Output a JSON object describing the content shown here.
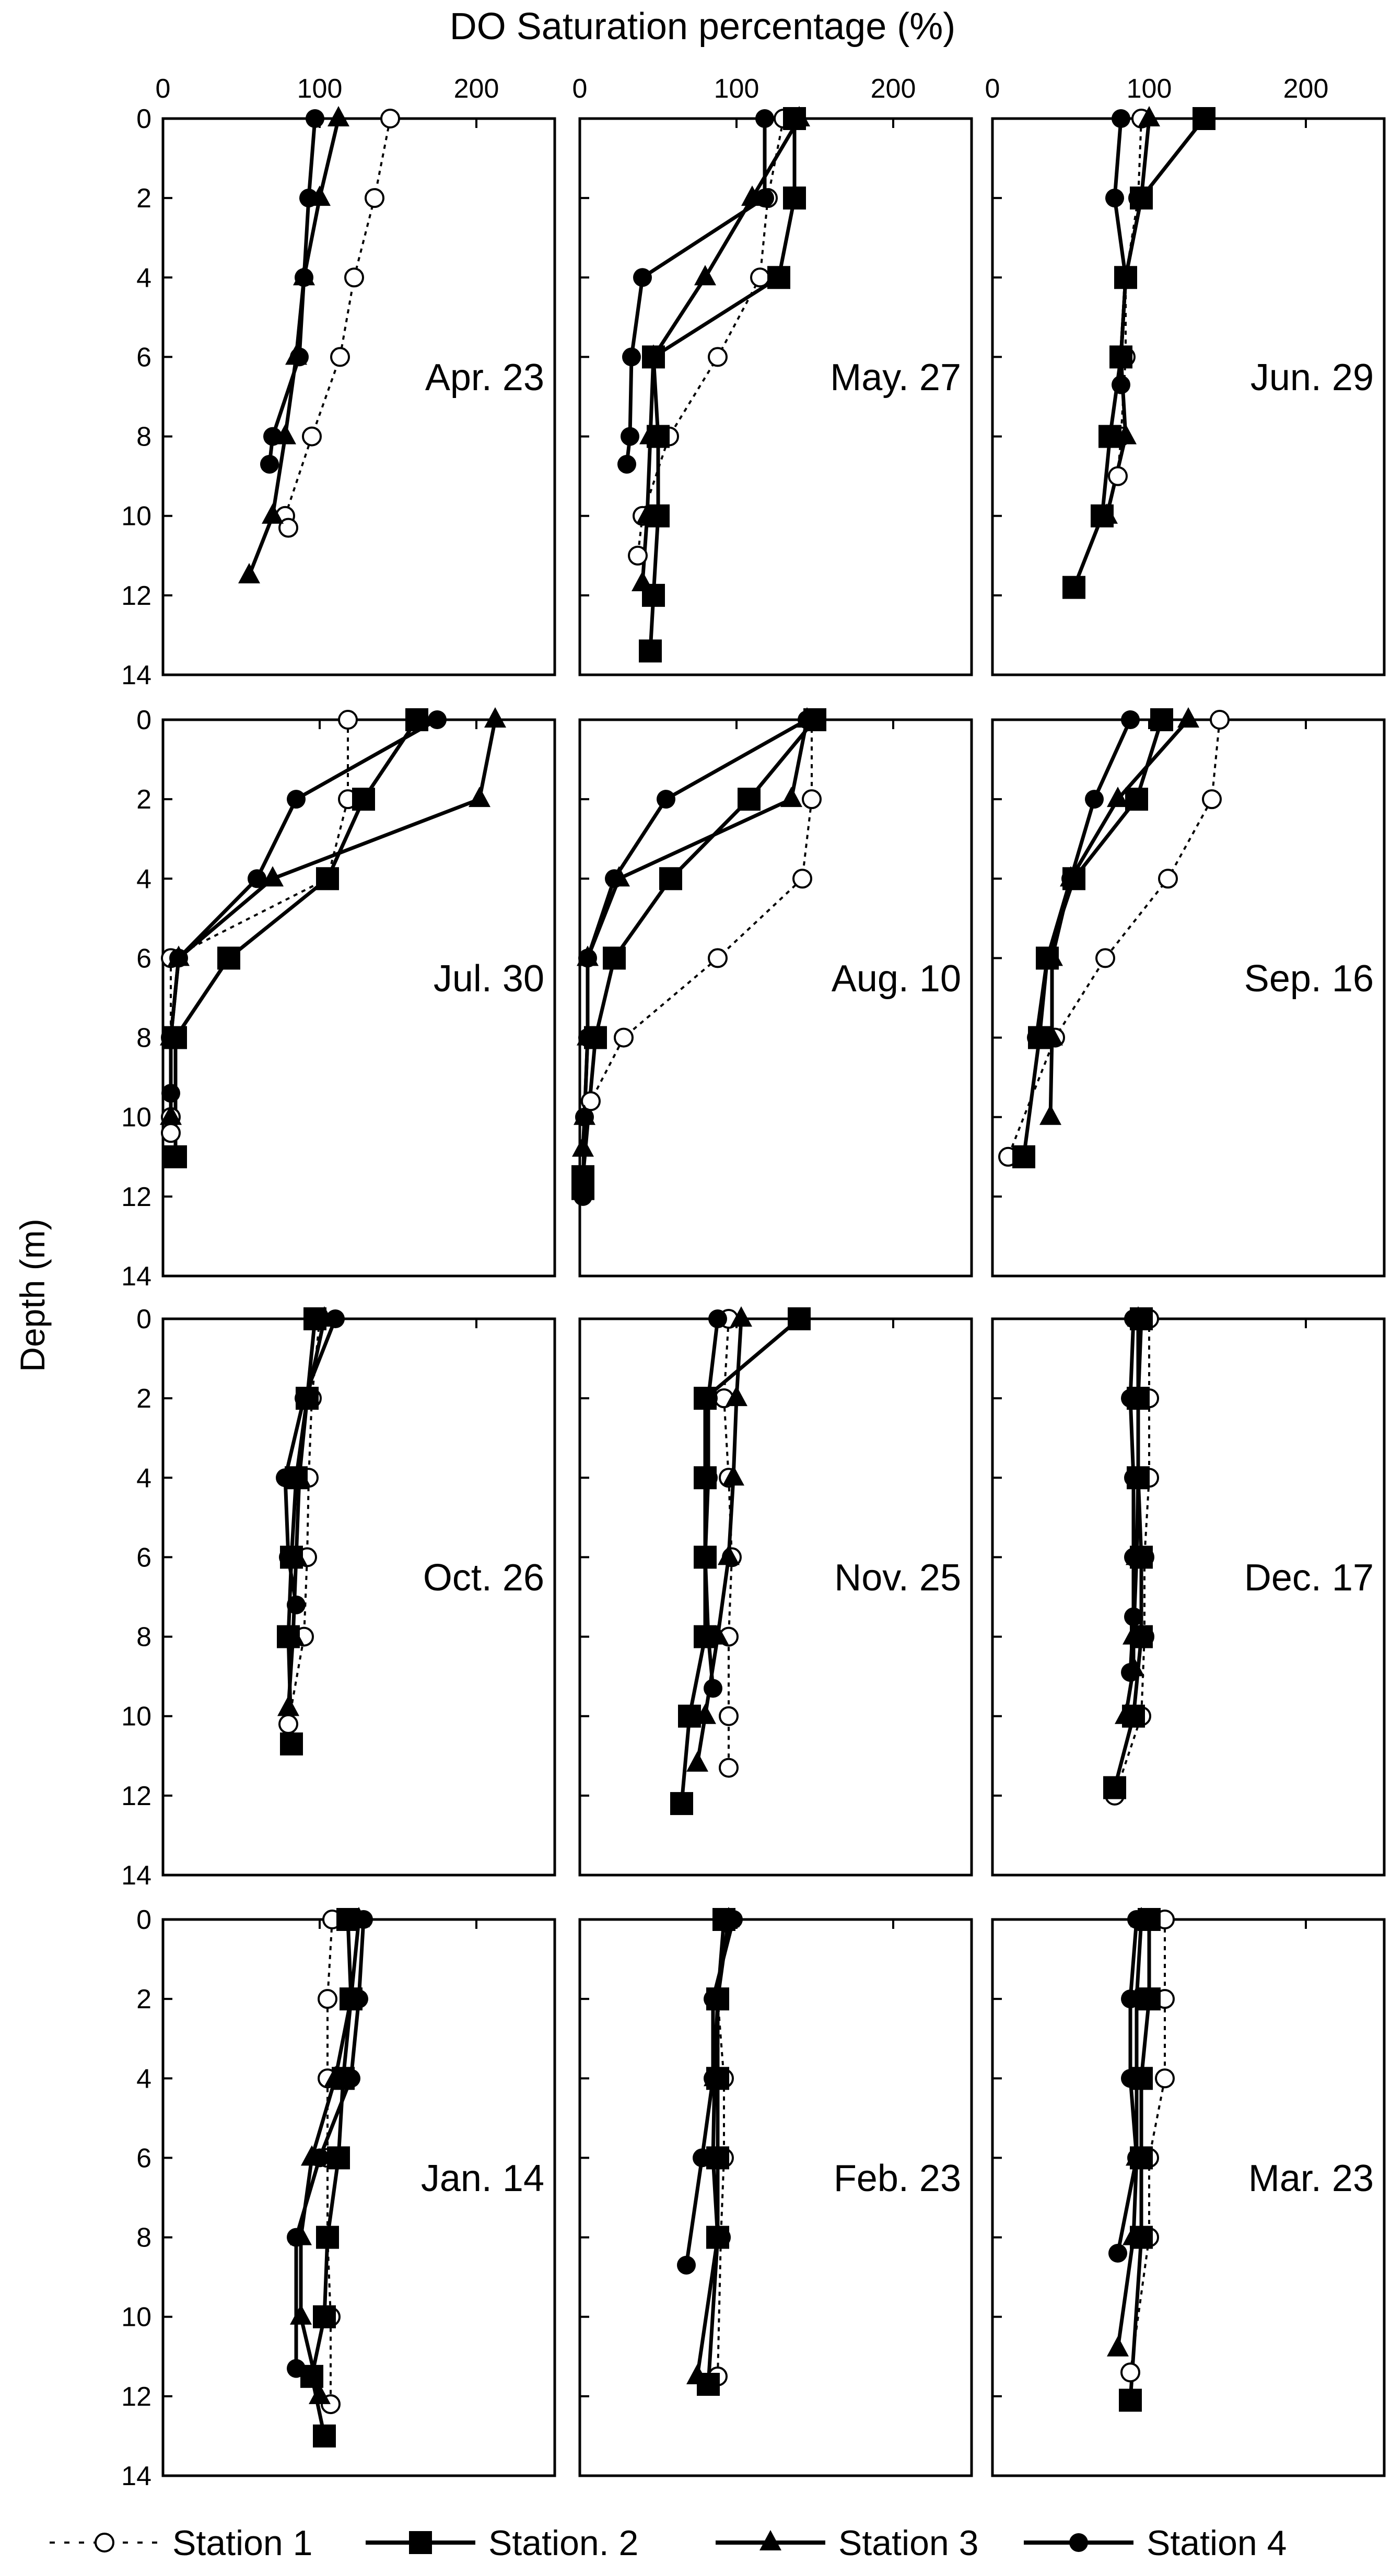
{
  "figure": {
    "xlabel": "DO Saturation percentage (%)",
    "ylabel": "Depth (m)"
  },
  "legend": {
    "items": [
      {
        "label": "Station 1",
        "marker": "open-circle",
        "line": "dotted"
      },
      {
        "label": "Station. 2",
        "marker": "square",
        "line": "solid"
      },
      {
        "label": "Station 3",
        "marker": "triangle",
        "line": "solid"
      },
      {
        "label": "Station 4",
        "marker": "circle",
        "line": "solid"
      }
    ]
  },
  "chart_data": {
    "type": "line",
    "orientation": "depth-profile",
    "x_ticks": [
      "0",
      "100",
      "200"
    ],
    "y_ticks": [
      "0",
      "2",
      "4",
      "6",
      "8",
      "10",
      "12",
      "14"
    ],
    "xlim": [
      0,
      250
    ],
    "ylim": [
      0,
      14
    ],
    "y_inverted": true,
    "series_names": [
      "Station 1",
      "Station. 2",
      "Station 3",
      "Station 4"
    ],
    "panels": [
      {
        "label": "Apr. 23",
        "series": [
          {
            "x": [
              145,
              135,
              122,
              113,
              95,
              78,
              80
            ],
            "y": [
              0,
              2,
              4,
              6,
              8,
              10,
              10.3
            ]
          },
          {
            "x": [],
            "y": []
          },
          {
            "x": [
              112,
              100,
              90,
              85,
              78,
              70,
              55
            ],
            "y": [
              0,
              2,
              4,
              6,
              8,
              10,
              11.5
            ]
          },
          {
            "x": [
              97,
              93,
              90,
              87,
              70,
              68
            ],
            "y": [
              0,
              2,
              4,
              6,
              8,
              8.7
            ]
          }
        ]
      },
      {
        "label": "May. 27",
        "series": [
          {
            "x": [
              130,
              120,
              115,
              88,
              57,
              40,
              37
            ],
            "y": [
              0,
              2,
              4,
              6,
              8,
              10,
              11
            ]
          },
          {
            "x": [
              137,
              137,
              127,
              47,
              50,
              50,
              47,
              45
            ],
            "y": [
              0,
              2,
              4,
              6,
              8,
              10,
              12,
              13.4
            ]
          },
          {
            "x": [
              140,
              110,
              80,
              47,
              45,
              43,
              40
            ],
            "y": [
              0,
              2,
              4,
              6,
              8,
              10,
              11.7
            ]
          },
          {
            "x": [
              118,
              118,
              40,
              33,
              32,
              30
            ],
            "y": [
              0,
              2,
              4,
              6,
              8,
              8.7
            ]
          }
        ]
      },
      {
        "label": "Jun. 29",
        "series": [
          {
            "x": [
              95,
              93,
              85,
              85,
              82,
              80
            ],
            "y": [
              0,
              2,
              4,
              6,
              8,
              9
            ]
          },
          {
            "x": [
              135,
              95,
              85,
              82,
              75,
              70,
              52
            ],
            "y": [
              0,
              2,
              4,
              6,
              8,
              10,
              11.8
            ]
          },
          {
            "x": [
              100,
              95,
              85,
              82,
              85,
              73
            ],
            "y": [
              0,
              2,
              4,
              6,
              8,
              10
            ]
          },
          {
            "x": [
              82,
              78,
              85,
              82,
              82
            ],
            "y": [
              0,
              2,
              4,
              6,
              6.7
            ]
          }
        ]
      },
      {
        "label": "Jul. 30",
        "series": [
          {
            "x": [
              118,
              118,
              105,
              5,
              5,
              5,
              5
            ],
            "y": [
              0,
              2,
              4,
              6,
              8,
              10,
              10.4
            ]
          },
          {
            "x": [
              162,
              128,
              105,
              42,
              8,
              8
            ],
            "y": [
              0,
              2,
              4,
              6,
              8,
              11
            ]
          },
          {
            "x": [
              212,
              202,
              70,
              10,
              5,
              5
            ],
            "y": [
              0,
              2,
              4,
              6,
              8,
              10
            ]
          },
          {
            "x": [
              175,
              85,
              60,
              10,
              5,
              5
            ],
            "y": [
              0,
              2,
              4,
              6,
              8,
              9.4
            ]
          }
        ]
      },
      {
        "label": "Aug. 10",
        "series": [
          {
            "x": [
              148,
              148,
              142,
              88,
              28,
              7
            ],
            "y": [
              0,
              2,
              4,
              6,
              8,
              9.6
            ]
          },
          {
            "x": [
              150,
              108,
              58,
              22,
              10,
              2,
              2
            ],
            "y": [
              0,
              2,
              4,
              6,
              8,
              11.5,
              11.8
            ]
          },
          {
            "x": [
              145,
              135,
              25,
              5,
              5,
              3,
              2
            ],
            "y": [
              0,
              2,
              4,
              6,
              8,
              10,
              10.8
            ]
          },
          {
            "x": [
              145,
              55,
              22,
              5,
              5,
              3,
              2
            ],
            "y": [
              0,
              2,
              4,
              6,
              8,
              10,
              12
            ]
          }
        ]
      },
      {
        "label": "Sep. 16",
        "series": [
          {
            "x": [
              145,
              140,
              112,
              72,
              40,
              10
            ],
            "y": [
              0,
              2,
              4,
              6,
              8,
              11
            ]
          },
          {
            "x": [
              108,
              92,
              52,
              35,
              30,
              20
            ],
            "y": [
              0,
              2,
              4,
              6,
              8,
              11
            ]
          },
          {
            "x": [
              125,
              80,
              50,
              38,
              38,
              37
            ],
            "y": [
              0,
              2,
              4,
              6,
              8,
              10
            ]
          },
          {
            "x": [
              88,
              65,
              50,
              35,
              28
            ],
            "y": [
              0,
              2,
              4,
              6,
              8
            ]
          }
        ]
      },
      {
        "label": "Oct. 26",
        "series": [
          {
            "x": [
              100,
              95,
              93,
              92,
              90,
              80
            ],
            "y": [
              0,
              2,
              4,
              6,
              8,
              10.2
            ]
          },
          {
            "x": [
              97,
              92,
              85,
              82,
              80,
              82
            ],
            "y": [
              0,
              2,
              4,
              6,
              8,
              10.7
            ]
          },
          {
            "x": [
              103,
              92,
              87,
              85,
              83,
              80
            ],
            "y": [
              0,
              2,
              4,
              6,
              8,
              9.8
            ]
          },
          {
            "x": [
              110,
              90,
              78,
              80,
              85
            ],
            "y": [
              0,
              2,
              4,
              6,
              7.2
            ]
          }
        ]
      },
      {
        "label": "Nov. 25",
        "series": [
          {
            "x": [
              95,
              92,
              95,
              97,
              95,
              95,
              95
            ],
            "y": [
              0,
              2,
              4,
              6,
              8,
              10,
              11.3
            ]
          },
          {
            "x": [
              140,
              80,
              80,
              80,
              80,
              70,
              65
            ],
            "y": [
              0,
              2,
              4,
              6,
              8,
              10,
              12.2
            ]
          },
          {
            "x": [
              103,
              100,
              98,
              95,
              88,
              80,
              75
            ],
            "y": [
              0,
              2,
              4,
              6,
              8,
              10,
              11.2
            ]
          },
          {
            "x": [
              88,
              82,
              82,
              80,
              82,
              85
            ],
            "y": [
              0,
              2,
              4,
              6,
              8,
              9.3
            ]
          }
        ]
      },
      {
        "label": "Dec. 17",
        "series": [
          {
            "x": [
              100,
              100,
              100,
              97,
              97,
              95,
              78
            ],
            "y": [
              0,
              2,
              4,
              6,
              8,
              10,
              12
            ]
          },
          {
            "x": [
              95,
              93,
              93,
              95,
              95,
              90,
              78
            ],
            "y": [
              0,
              2,
              4,
              6,
              8,
              10,
              11.8
            ]
          },
          {
            "x": [
              93,
              93,
              93,
              92,
              90,
              90,
              85
            ],
            "y": [
              0,
              2,
              4,
              6,
              8,
              8.8,
              10
            ]
          },
          {
            "x": [
              90,
              88,
              90,
              90,
              90,
              88
            ],
            "y": [
              0,
              2,
              4,
              6,
              7.5,
              8.9
            ]
          }
        ]
      },
      {
        "label": "Jan. 14",
        "series": [
          {
            "x": [
              108,
              105,
              105,
              105,
              105,
              107,
              107
            ],
            "y": [
              0,
              2,
              4,
              6,
              8,
              10,
              12.2
            ]
          },
          {
            "x": [
              118,
              120,
              115,
              112,
              105,
              103,
              95,
              103
            ],
            "y": [
              0,
              2,
              4,
              6,
              8,
              10,
              11.5,
              13
            ]
          },
          {
            "x": [
              125,
              120,
              110,
              95,
              88,
              88,
              100
            ],
            "y": [
              0,
              2,
              4,
              6,
              8,
              10,
              12
            ]
          },
          {
            "x": [
              128,
              125,
              120,
              100,
              85,
              85
            ],
            "y": [
              0,
              2,
              4,
              6,
              8,
              11.3
            ]
          }
        ]
      },
      {
        "label": "Feb. 23",
        "series": [
          {
            "x": [
              93,
              88,
              92,
              92,
              90,
              88
            ],
            "y": [
              0,
              2,
              4,
              6,
              8,
              11.5
            ]
          },
          {
            "x": [
              92,
              88,
              88,
              88,
              88,
              82
            ],
            "y": [
              0,
              2,
              4,
              6,
              8,
              11.7
            ]
          },
          {
            "x": [
              95,
              88,
              86,
              85,
              88,
              75
            ],
            "y": [
              0,
              2,
              4,
              6,
              8,
              11.5
            ]
          },
          {
            "x": [
              98,
              85,
              85,
              78,
              68
            ],
            "y": [
              0,
              2,
              4,
              6,
              8.7
            ]
          }
        ]
      },
      {
        "label": "Mar. 23",
        "series": [
          {
            "x": [
              110,
              110,
              110,
              100,
              100,
              88
            ],
            "y": [
              0,
              2,
              4,
              6,
              8,
              11.4
            ]
          },
          {
            "x": [
              100,
              100,
              95,
              95,
              95,
              88
            ],
            "y": [
              0,
              2,
              4,
              6,
              8,
              12.1
            ]
          },
          {
            "x": [
              95,
              92,
              92,
              92,
              90,
              80
            ],
            "y": [
              0,
              2,
              4,
              6,
              8,
              10.8
            ]
          },
          {
            "x": [
              92,
              88,
              88,
              92,
              80
            ],
            "y": [
              0,
              2,
              4,
              6,
              8.4
            ]
          }
        ]
      }
    ]
  }
}
